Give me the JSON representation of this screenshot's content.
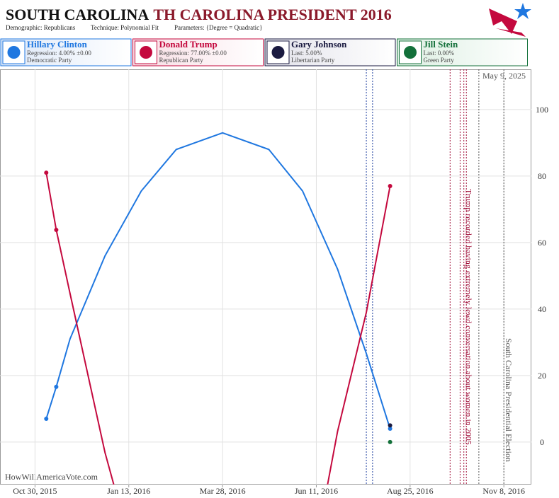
{
  "chart_data": {
    "type": "line",
    "title": "SOUTH CAROLINA",
    "title_suffix": "TH CAROLINA PRESIDENT 2016",
    "subtitle": [
      "Demographic: Republicans",
      "Technique: Polynomial Fit",
      "Parameters: {Degree = Quadratic}"
    ],
    "date_stamp": "May 9, 2025",
    "source": "HowWillAmericaVote.com",
    "xlim": [
      "2015-10-02",
      "2016-11-30"
    ],
    "xticks": [
      {
        "value": "2015-10-30",
        "label": "Oct 30, 2015"
      },
      {
        "value": "2016-01-13",
        "label": "Jan 13, 2016"
      },
      {
        "value": "2016-03-28",
        "label": "Mar 28, 2016"
      },
      {
        "value": "2016-06-11",
        "label": "Jun 11, 2016"
      },
      {
        "value": "2016-08-25",
        "label": "Aug 25, 2016"
      },
      {
        "value": "2016-11-08",
        "label": "Nov 8, 2016"
      }
    ],
    "ylim": [
      -12.8,
      112.1
    ],
    "yticks": [
      0,
      20,
      40,
      60,
      80,
      100
    ],
    "grid": true,
    "series": [
      {
        "name": "Hillary Clinton",
        "color": "#1f77e0",
        "detail": "Regression: 4.00% ±0.00",
        "party": "Democratic Party",
        "x": [
          "2015-11-08",
          "2015-11-16",
          "2016-08-09"
        ],
        "values": [
          7,
          16.6,
          4
        ],
        "fit_x": [
          "2015-11-08",
          "2015-11-16",
          "2015-11-27",
          "2015-12-25",
          "2016-01-23",
          "2016-02-20",
          "2016-03-28",
          "2016-05-04",
          "2016-05-31",
          "2016-06-28",
          "2016-07-21",
          "2016-08-09"
        ],
        "fit_values": [
          7,
          16.6,
          31,
          56,
          75.5,
          88,
          93,
          88,
          75.5,
          52,
          26.6,
          4
        ]
      },
      {
        "name": "Donald Trump",
        "color": "#c4093e",
        "detail": "Regression: 77.00% ±0.00",
        "party": "Republican Party",
        "x": [
          "2015-11-08",
          "2015-11-16",
          "2016-08-09"
        ],
        "values": [
          81,
          63.8,
          77
        ],
        "fit_x": [
          "2015-11-08",
          "2015-11-16",
          "2015-11-27",
          "2015-12-25",
          "2016-01-01",
          "2016-03-28",
          "2016-06-20",
          "2016-06-28",
          "2016-07-21",
          "2016-08-09"
        ],
        "fit_values": [
          81,
          63.8,
          44.7,
          -3.2,
          -12.8,
          null,
          -12.8,
          3.2,
          39,
          77
        ]
      },
      {
        "name": "Gary Johnson",
        "color": "#1a1a40",
        "detail": "Last: 5.00%",
        "party": "Libertarian Party",
        "x": [
          "2016-08-09"
        ],
        "values": [
          5
        ]
      },
      {
        "name": "Jill Stein",
        "color": "#13703a",
        "detail": "Last: 0.00%",
        "party": "Green Party",
        "x": [
          "2016-08-09"
        ],
        "values": [
          0
        ]
      }
    ],
    "events": [
      {
        "x": "2016-07-21",
        "color": "#1f3fa0"
      },
      {
        "x": "2016-07-26",
        "color": "#1f3fa0"
      },
      {
        "x": "2016-09-26",
        "color": "#a0103a"
      },
      {
        "x": "2016-10-04",
        "color": "#a0103a"
      },
      {
        "x": "2016-10-07",
        "color": "#a0103a"
      },
      {
        "x": "2016-10-09",
        "color": "#a0103a"
      },
      {
        "x": "2016-10-19",
        "color": "#555555"
      },
      {
        "x": "2016-11-08",
        "color": "#555555"
      }
    ],
    "annotations": [
      {
        "text": "Trump recorded having extremely lewd conversation about women in 2005",
        "x": "2016-10-07",
        "color": "#a0103a"
      },
      {
        "text": "South Carolina Presidential Election",
        "x": "2016-11-08",
        "color": "#555555"
      }
    ]
  }
}
